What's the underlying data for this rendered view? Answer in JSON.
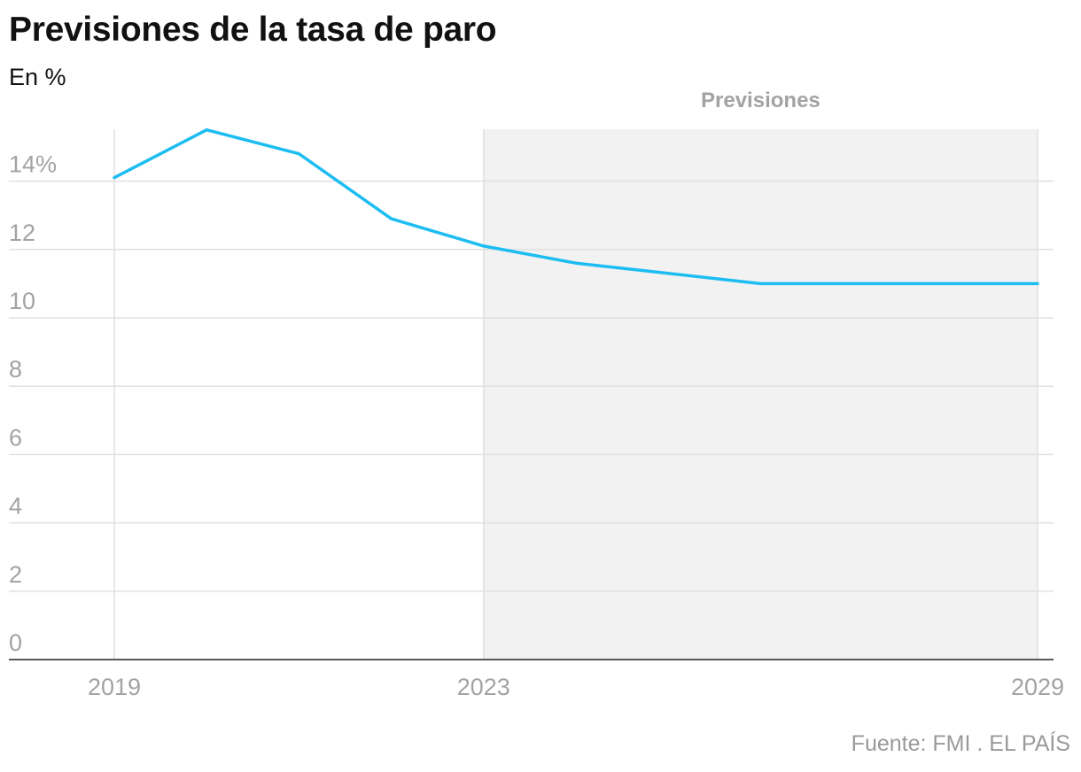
{
  "title": "Previsiones de la tasa de paro",
  "subtitle": "En %",
  "source": "Fuente: FMI . EL PAÍS",
  "chart_data": {
    "type": "line",
    "title": "Previsiones de la tasa de paro",
    "subtitle": "En %",
    "xlabel": "",
    "ylabel": "",
    "x": [
      2019,
      2020,
      2021,
      2022,
      2023,
      2024,
      2025,
      2026,
      2027,
      2028,
      2029
    ],
    "series": [
      {
        "values": [
          14.1,
          15.5,
          14.8,
          12.9,
          12.1,
          11.6,
          11.3,
          11.0,
          11.0,
          11.0,
          11.0
        ]
      }
    ],
    "xlim": [
      2019,
      2029
    ],
    "ylim": [
      0,
      15.5
    ],
    "x_tick_labels": [
      "2019",
      "2023",
      "2029"
    ],
    "x_tick_values": [
      2019,
      2023,
      2029
    ],
    "y_tick_labels": [
      "0",
      "2",
      "4",
      "6",
      "8",
      "10",
      "12",
      "14%"
    ],
    "y_tick_values": [
      0,
      2,
      4,
      6,
      8,
      10,
      12,
      14
    ],
    "forecast_band": {
      "from": 2023,
      "to": 2029,
      "label": "Previsiones"
    },
    "grid": true,
    "colors": {
      "line": "#1dbdf2",
      "band": "#f2f2f2",
      "grid": "#e0e0e0",
      "baseline": "#222222",
      "ticks": "#a3a3a3"
    }
  }
}
